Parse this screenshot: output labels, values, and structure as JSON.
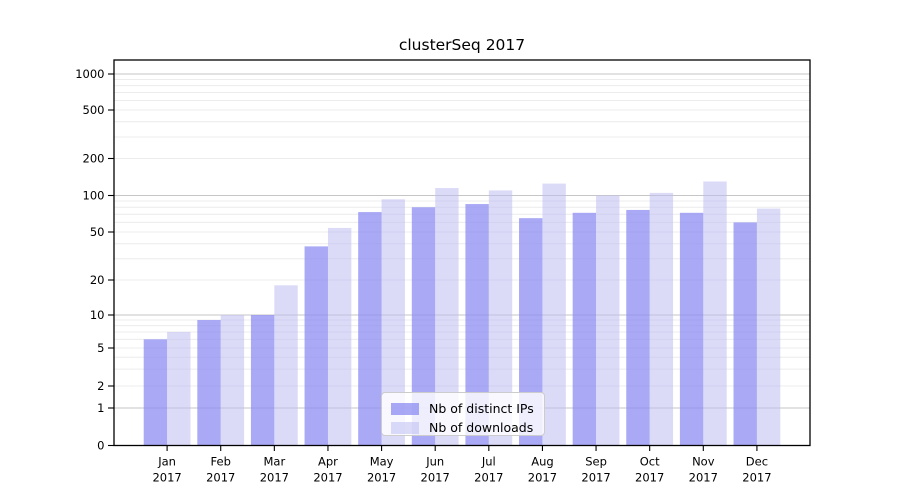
{
  "chart_data": {
    "type": "bar",
    "title": "clusterSeq 2017",
    "categories": [
      "Jan",
      "Feb",
      "Mar",
      "Apr",
      "May",
      "Jun",
      "Jul",
      "Aug",
      "Sep",
      "Oct",
      "Nov",
      "Dec"
    ],
    "x_year_label": "2017",
    "series": [
      {
        "name": "Nb of distinct IPs",
        "color": "rgba(140,140,242,0.75)",
        "values": [
          6,
          9,
          10,
          38,
          73,
          80,
          85,
          65,
          72,
          76,
          72,
          60
        ]
      },
      {
        "name": "Nb of downloads",
        "color": "rgba(190,190,243,0.55)",
        "values": [
          7,
          10,
          18,
          54,
          93,
          115,
          110,
          125,
          100,
          105,
          130,
          78
        ]
      }
    ],
    "y_axis": {
      "scale": "log-like",
      "ticks": [
        0,
        1,
        2,
        5,
        10,
        20,
        50,
        100,
        200,
        500,
        1000
      ],
      "range": [
        0,
        1000
      ]
    },
    "x_axis": {
      "tick_line1": [
        "Jan",
        "Feb",
        "Mar",
        "Apr",
        "May",
        "Jun",
        "Jul",
        "Aug",
        "Sep",
        "Oct",
        "Nov",
        "Dec"
      ],
      "tick_line2": "2017"
    },
    "legend": {
      "position": "lower center"
    },
    "grid": {
      "major": true,
      "minor": true
    },
    "colors": {
      "major_grid": "#c6c6c6",
      "minor_grid": "#ececec",
      "spine": "#000000",
      "background": "#ffffff"
    }
  }
}
